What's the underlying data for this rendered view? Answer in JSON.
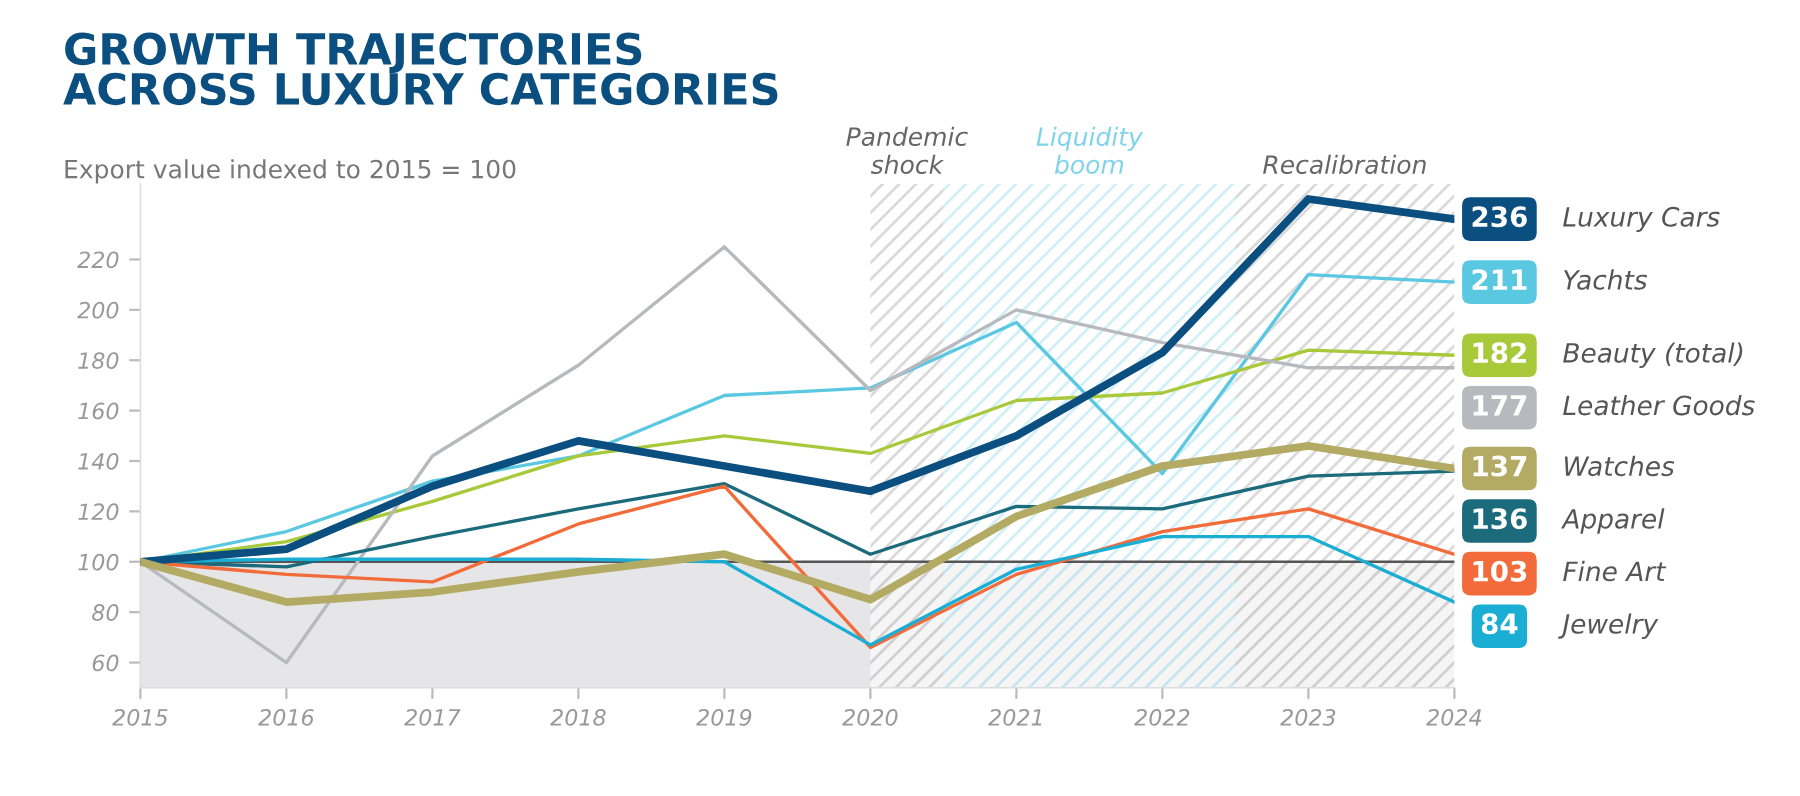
{
  "chart_data": {
    "type": "line",
    "title": "GROWTH TRAJECTORIES\nACROSS LUXURY CATEGORIES",
    "subtitle": "Export value indexed to 2015 = 100",
    "x": [
      2015,
      2016,
      2017,
      2018,
      2019,
      2020,
      2021,
      2022,
      2023,
      2024
    ],
    "xlim": [
      2015,
      2024
    ],
    "xticks": [
      2015,
      2016,
      2017,
      2018,
      2019,
      2020,
      2021,
      2022,
      2023,
      2024
    ],
    "ylim": [
      50,
      250
    ],
    "yticks": [
      60,
      80,
      100,
      120,
      140,
      160,
      180,
      200,
      220
    ],
    "grid": false,
    "legend": "right",
    "marker": "none",
    "line_style": "solid",
    "series": [
      {
        "name": "Luxury Cars",
        "color": "#0b4f80",
        "values": [
          100,
          105,
          130,
          148,
          138,
          128,
          150,
          183,
          244,
          236
        ],
        "value_labels": [
          null,
          null,
          null,
          null,
          null,
          null,
          null,
          null,
          null,
          "236"
        ]
      },
      {
        "name": "Yachts",
        "color": "#5bc8e2",
        "values": [
          100,
          112,
          132,
          142,
          166,
          169,
          195,
          135,
          214,
          211
        ],
        "value_labels": [
          null,
          null,
          null,
          null,
          null,
          null,
          null,
          null,
          null,
          "211"
        ]
      },
      {
        "name": "Beauty (total)",
        "color": "#a7c93a",
        "values": [
          100,
          108,
          124,
          142,
          150,
          143,
          164,
          167,
          184,
          182
        ],
        "value_labels": [
          null,
          null,
          null,
          null,
          null,
          null,
          null,
          null,
          null,
          "182"
        ]
      },
      {
        "name": "Leather Goods",
        "color": "#b7b9be",
        "values": [
          100,
          60,
          142,
          178,
          225,
          168,
          200,
          187,
          177,
          177
        ],
        "value_labels": [
          null,
          null,
          null,
          null,
          null,
          null,
          null,
          null,
          null,
          "177"
        ]
      },
      {
        "name": "Watches",
        "color": "#b3aa64",
        "values": [
          100,
          84,
          88,
          96,
          103,
          85,
          118,
          138,
          146,
          137
        ],
        "value_labels": [
          null,
          null,
          null,
          null,
          null,
          null,
          null,
          null,
          null,
          "137"
        ]
      },
      {
        "name": "Apparel",
        "color": "#1b6b7d",
        "values": [
          100,
          98,
          110,
          121,
          131,
          103,
          122,
          121,
          134,
          136
        ],
        "value_labels": [
          null,
          null,
          null,
          null,
          null,
          null,
          null,
          null,
          null,
          "136"
        ]
      },
      {
        "name": "Fine Art",
        "color": "#f26b3a",
        "values": [
          100,
          95,
          92,
          115,
          130,
          66,
          95,
          112,
          121,
          103
        ],
        "value_labels": [
          null,
          null,
          null,
          null,
          null,
          null,
          null,
          null,
          null,
          "103"
        ]
      },
      {
        "name": "Jewelry",
        "color": "#1aaed4",
        "values": [
          100,
          101,
          101,
          101,
          100,
          67,
          97,
          110,
          110,
          84
        ],
        "value_labels": [
          null,
          null,
          null,
          null,
          null,
          null,
          null,
          null,
          null,
          "84"
        ]
      }
    ],
    "ref_lines": [
      {
        "axis": "y",
        "value": 100,
        "color": "#555555",
        "line_style": "solid"
      }
    ],
    "bands": [
      {
        "axis": "y",
        "from": 50,
        "to": 100,
        "color": "#e6e6e8"
      },
      {
        "axis": "x",
        "from": 2020,
        "to": 2020.5,
        "label": "Pandemic\nshock",
        "color": "#9a9a9a"
      },
      {
        "axis": "x",
        "from": 2020.5,
        "to": 2022.5,
        "label": "Liquidity\nboom",
        "color": "#7fd3ea"
      },
      {
        "axis": "x",
        "from": 2022.5,
        "to": 2024,
        "label": "Recalibration",
        "color": "#9a9a9a"
      }
    ]
  }
}
